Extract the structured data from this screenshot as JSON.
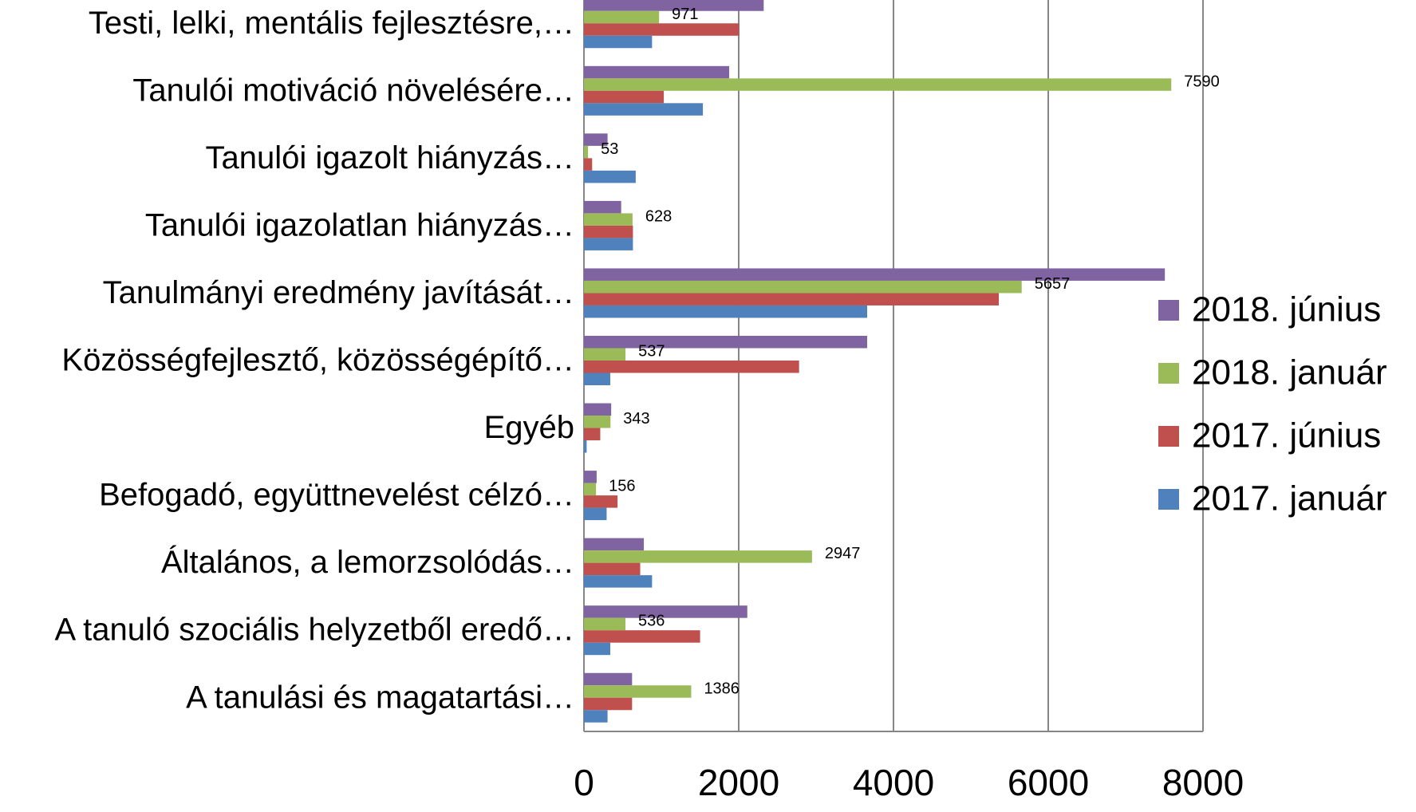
{
  "chart_data": {
    "type": "bar",
    "orientation": "horizontal",
    "categories": [
      "Testi, lelki, mentális fejlesztésre,…",
      "Tanulói motiváció növelésére…",
      "Tanulói igazolt hiányzás…",
      "Tanulói igazolatlan hiányzás…",
      "Tanulmányi eredmény javítását…",
      "Közösségfejlesztő, közösségépítő…",
      "Egyéb",
      "Befogadó, együttnevelést célzó…",
      "Általános, a lemorzsolódás…",
      "A tanuló szociális helyzetből eredő…",
      "A tanulási és magatartási…"
    ],
    "series": [
      {
        "name": "2018. június",
        "color": "#8064a2",
        "values": [
          2323,
          1877,
          305,
          481,
          7507,
          3660,
          352,
          164,
          774,
          2111,
          622
        ]
      },
      {
        "name": "2018. január",
        "color": "#9bbb59",
        "values": [
          971,
          7590,
          53,
          628,
          5657,
          537,
          343,
          156,
          2947,
          536,
          1386
        ],
        "data_labels": true
      },
      {
        "name": "2017. június",
        "color": "#c0504d",
        "values": [
          2006,
          1032,
          106,
          633,
          5361,
          2780,
          211,
          434,
          727,
          1501,
          622
        ]
      },
      {
        "name": "2017. január",
        "color": "#4f81bd",
        "values": [
          880,
          1537,
          669,
          633,
          3660,
          340,
          35,
          293,
          880,
          340,
          305
        ]
      }
    ],
    "xlim": [
      0,
      8000
    ],
    "xticks": [
      0,
      2000,
      4000,
      6000,
      8000
    ],
    "grid": true,
    "legend": "right"
  }
}
